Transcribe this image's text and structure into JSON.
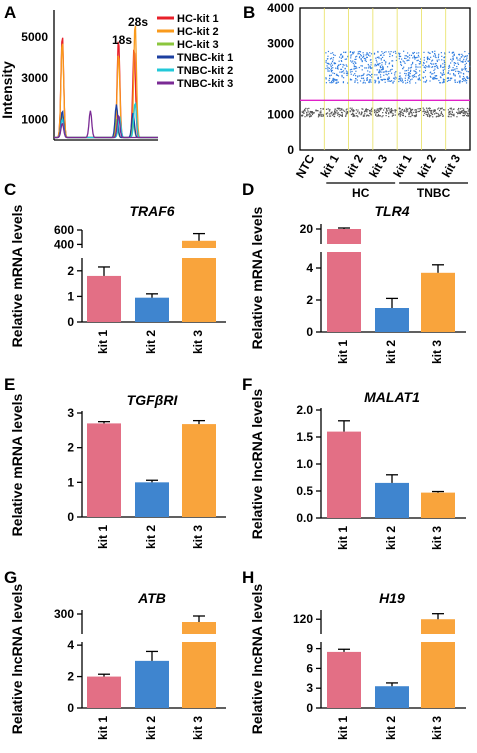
{
  "colors": {
    "kit1": "#e36f85",
    "kit2": "#3f85cf",
    "kit3": "#f9a43c",
    "hc1": "#e8202a",
    "hc2": "#f99a1c",
    "hc3": "#8bc63e",
    "tnbc1": "#1c3fa0",
    "tnbc2": "#22c8d8",
    "tnbc3": "#7a2a94",
    "positive_droplets": "#2f7de0",
    "negative_droplets": "#555555",
    "threshold": "#e020c8"
  },
  "chart_data": [
    {
      "panel": "A",
      "type": "line",
      "ylabel": "Intensity",
      "yticks": [
        1000,
        3000,
        5000
      ],
      "ylim": [
        0,
        6300
      ],
      "annotations": [
        "18s",
        "28s"
      ],
      "legend_position": "top-right",
      "series": [
        {
          "name": "HC-kit 1",
          "color_key": "hc1",
          "peaks": [
            {
              "pos": 0.08,
              "h": 5000
            },
            {
              "pos": 0.62,
              "h": 4800
            },
            {
              "pos": 0.77,
              "h": 4400
            }
          ]
        },
        {
          "name": "HC-kit 2",
          "color_key": "hc2",
          "peaks": [
            {
              "pos": 0.08,
              "h": 4700
            },
            {
              "pos": 0.62,
              "h": 4100
            },
            {
              "pos": 0.78,
              "h": 5600
            }
          ]
        },
        {
          "name": "HC-kit 3",
          "color_key": "hc3",
          "peaks": [
            {
              "pos": 0.08,
              "h": 1100
            },
            {
              "pos": 0.6,
              "h": 900
            },
            {
              "pos": 0.76,
              "h": 800
            }
          ]
        },
        {
          "name": "TNBC-kit 1",
          "color_key": "tnbc1",
          "peaks": [
            {
              "pos": 0.08,
              "h": 1300
            },
            {
              "pos": 0.6,
              "h": 1600
            },
            {
              "pos": 0.76,
              "h": 1200
            }
          ]
        },
        {
          "name": "TNBC-kit 2",
          "color_key": "tnbc2",
          "peaks": [
            {
              "pos": 0.08,
              "h": 900
            },
            {
              "pos": 0.63,
              "h": 1000
            },
            {
              "pos": 0.78,
              "h": 1700
            }
          ]
        },
        {
          "name": "TNBC-kit 3",
          "color_key": "tnbc3",
          "peaks": [
            {
              "pos": 0.08,
              "h": 700
            },
            {
              "pos": 0.35,
              "h": 1300
            },
            {
              "pos": 0.62,
              "h": 1100
            }
          ]
        }
      ]
    },
    {
      "panel": "B",
      "type": "scatter",
      "ylim": [
        0,
        4000
      ],
      "yticks": [
        0,
        1000,
        2000,
        3000,
        4000
      ],
      "wells": [
        "NTC",
        "kit 1",
        "kit 2",
        "kit 3",
        "kit 1",
        "kit 2",
        "kit 3"
      ],
      "groups": [
        {
          "label": "HC",
          "from": 1,
          "to": 3
        },
        {
          "label": "TNBC",
          "from": 4,
          "to": 6
        }
      ],
      "negative_band": [
        950,
        1200
      ],
      "positive_band": [
        1900,
        2800
      ],
      "threshold": 1400
    },
    {
      "panel": "C",
      "type": "bar",
      "title": "TRAF6",
      "ylabel": "Relative mRNA levels",
      "categories": [
        "kit 1",
        "kit 2",
        "kit 3"
      ],
      "values": [
        1.8,
        0.95,
        450
      ],
      "errors": [
        0.35,
        0.15,
        100
      ],
      "broken_axis": {
        "lower": [
          0,
          2.5
        ],
        "upper": [
          350,
          600
        ]
      },
      "yticks_lower": [
        0,
        1,
        2
      ],
      "yticks_upper": [
        400,
        600
      ]
    },
    {
      "panel": "D",
      "type": "bar",
      "title": "TLR4",
      "ylabel": "Relative mRNA levels",
      "categories": [
        "kit 1",
        "kit 2",
        "kit 3"
      ],
      "values": [
        20,
        1.5,
        3.7
      ],
      "errors": [
        0.2,
        0.6,
        0.5
      ],
      "broken_axis": {
        "lower": [
          0,
          5
        ],
        "upper": [
          17,
          21
        ]
      },
      "yticks_lower": [
        0,
        2,
        4
      ],
      "yticks_upper": [
        20
      ]
    },
    {
      "panel": "E",
      "type": "bar",
      "title": "TGFβRI",
      "ylabel": "Relative mRNA levels",
      "categories": [
        "kit 1",
        "kit 2",
        "kit 3"
      ],
      "values": [
        2.7,
        1.0,
        2.68
      ],
      "errors": [
        0.05,
        0.06,
        0.1
      ],
      "ylim": [
        0,
        3
      ],
      "yticks": [
        0,
        1,
        2,
        3
      ]
    },
    {
      "panel": "F",
      "type": "bar",
      "title": "MALAT1",
      "ylabel": "Relative lncRNA levels",
      "categories": [
        "kit 1",
        "kit 2",
        "kit 3"
      ],
      "values": [
        1.6,
        0.65,
        0.47
      ],
      "errors": [
        0.2,
        0.15,
        0.02
      ],
      "ylim": [
        0,
        2.0
      ],
      "yticks": [
        "0.0",
        "0.5",
        "1.0",
        "1.5",
        "2.0"
      ]
    },
    {
      "panel": "G",
      "type": "bar",
      "title": "ATB",
      "ylabel": "Relative lncRNA levels",
      "categories": [
        "kit 1",
        "kit 2",
        "kit 3"
      ],
      "values": [
        2.0,
        3.0,
        280
      ],
      "errors": [
        0.15,
        0.6,
        15
      ],
      "broken_axis": {
        "lower": [
          0,
          4.2
        ],
        "upper": [
          250,
          310
        ]
      },
      "yticks_lower": [
        0,
        2,
        4
      ],
      "yticks_upper": [
        300
      ]
    },
    {
      "panel": "H",
      "type": "bar",
      "title": "H19",
      "ylabel": "Relative lncRNA levels",
      "categories": [
        "kit 1",
        "kit 2",
        "kit 3"
      ],
      "values": [
        8.5,
        3.3,
        120
      ],
      "errors": [
        0.4,
        0.5,
        3
      ],
      "broken_axis": {
        "lower": [
          0,
          10
        ],
        "upper": [
          112,
          125
        ]
      },
      "yticks_lower": [
        0,
        3,
        6,
        9
      ],
      "yticks_upper": [
        120
      ]
    }
  ]
}
